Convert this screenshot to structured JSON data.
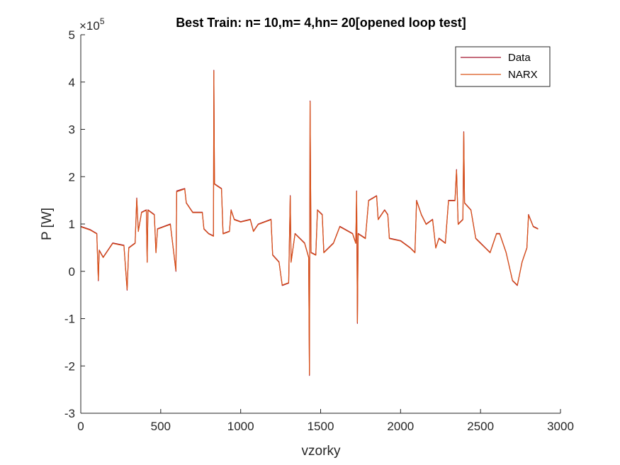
{
  "chart_data": {
    "type": "line",
    "title": "Best Train: n= 10,m= 4,hn= 20[opened loop test]",
    "xlabel": "vzorky",
    "ylabel": "P [W]",
    "y_exponent_prefix": "×10",
    "y_exponent_power": "5",
    "xlim": [
      0,
      3000
    ],
    "ylim": [
      -300000,
      500000
    ],
    "x_ticks": [
      0,
      500,
      1000,
      1500,
      2000,
      2500,
      3000
    ],
    "y_ticks": [
      -3,
      -2,
      -1,
      0,
      1,
      2,
      3,
      4,
      5
    ],
    "y_tick_scale": 100000,
    "legend_position": "top-right",
    "grid": false,
    "series": [
      {
        "name": "Data",
        "color": "#a2142f",
        "points": [
          [
            0,
            95000
          ],
          [
            60,
            88000
          ],
          [
            100,
            80000
          ],
          [
            110,
            -20000
          ],
          [
            115,
            45000
          ],
          [
            140,
            30000
          ],
          [
            200,
            60000
          ],
          [
            270,
            55000
          ],
          [
            290,
            -40000
          ],
          [
            300,
            50000
          ],
          [
            340,
            60000
          ],
          [
            350,
            155000
          ],
          [
            360,
            85000
          ],
          [
            380,
            125000
          ],
          [
            410,
            130000
          ],
          [
            415,
            20000
          ],
          [
            420,
            130000
          ],
          [
            460,
            120000
          ],
          [
            470,
            40000
          ],
          [
            480,
            90000
          ],
          [
            560,
            100000
          ],
          [
            595,
            0
          ],
          [
            600,
            170000
          ],
          [
            650,
            175000
          ],
          [
            660,
            145000
          ],
          [
            700,
            125000
          ],
          [
            760,
            125000
          ],
          [
            770,
            90000
          ],
          [
            800,
            80000
          ],
          [
            830,
            75000
          ],
          [
            832,
            425000
          ],
          [
            836,
            185000
          ],
          [
            880,
            175000
          ],
          [
            890,
            80000
          ],
          [
            930,
            85000
          ],
          [
            940,
            130000
          ],
          [
            960,
            110000
          ],
          [
            1000,
            105000
          ],
          [
            1060,
            110000
          ],
          [
            1080,
            85000
          ],
          [
            1110,
            100000
          ],
          [
            1190,
            110000
          ],
          [
            1200,
            35000
          ],
          [
            1240,
            20000
          ],
          [
            1260,
            -30000
          ],
          [
            1300,
            -25000
          ],
          [
            1310,
            160000
          ],
          [
            1315,
            20000
          ],
          [
            1340,
            80000
          ],
          [
            1400,
            60000
          ],
          [
            1425,
            30000
          ],
          [
            1430,
            -220000
          ],
          [
            1434,
            360000
          ],
          [
            1440,
            40000
          ],
          [
            1470,
            35000
          ],
          [
            1480,
            130000
          ],
          [
            1510,
            120000
          ],
          [
            1520,
            40000
          ],
          [
            1580,
            60000
          ],
          [
            1620,
            95000
          ],
          [
            1700,
            80000
          ],
          [
            1720,
            60000
          ],
          [
            1725,
            170000
          ],
          [
            1730,
            -110000
          ],
          [
            1735,
            80000
          ],
          [
            1780,
            70000
          ],
          [
            1800,
            150000
          ],
          [
            1850,
            160000
          ],
          [
            1860,
            110000
          ],
          [
            1900,
            130000
          ],
          [
            1920,
            120000
          ],
          [
            1930,
            70000
          ],
          [
            2000,
            65000
          ],
          [
            2060,
            50000
          ],
          [
            2090,
            40000
          ],
          [
            2100,
            150000
          ],
          [
            2130,
            120000
          ],
          [
            2160,
            100000
          ],
          [
            2200,
            110000
          ],
          [
            2220,
            50000
          ],
          [
            2240,
            70000
          ],
          [
            2280,
            60000
          ],
          [
            2300,
            150000
          ],
          [
            2340,
            150000
          ],
          [
            2350,
            215000
          ],
          [
            2360,
            100000
          ],
          [
            2390,
            110000
          ],
          [
            2395,
            295000
          ],
          [
            2400,
            145000
          ],
          [
            2440,
            130000
          ],
          [
            2470,
            70000
          ],
          [
            2500,
            60000
          ],
          [
            2530,
            50000
          ],
          [
            2560,
            40000
          ],
          [
            2600,
            80000
          ],
          [
            2620,
            80000
          ],
          [
            2660,
            40000
          ],
          [
            2700,
            -20000
          ],
          [
            2730,
            -30000
          ],
          [
            2760,
            20000
          ],
          [
            2790,
            50000
          ],
          [
            2800,
            120000
          ],
          [
            2830,
            95000
          ],
          [
            2860,
            90000
          ]
        ]
      },
      {
        "name": "NARX",
        "color": "#d95319",
        "points": [
          [
            0,
            94000
          ],
          [
            60,
            87000
          ],
          [
            100,
            79000
          ],
          [
            110,
            -18000
          ],
          [
            115,
            44000
          ],
          [
            140,
            29000
          ],
          [
            200,
            59000
          ],
          [
            270,
            54000
          ],
          [
            290,
            -38000
          ],
          [
            300,
            49000
          ],
          [
            340,
            59000
          ],
          [
            350,
            153000
          ],
          [
            360,
            84000
          ],
          [
            380,
            124000
          ],
          [
            410,
            129000
          ],
          [
            415,
            19000
          ],
          [
            420,
            129000
          ],
          [
            460,
            119000
          ],
          [
            470,
            39000
          ],
          [
            480,
            89000
          ],
          [
            560,
            99000
          ],
          [
            595,
            2000
          ],
          [
            600,
            168000
          ],
          [
            650,
            174000
          ],
          [
            660,
            144000
          ],
          [
            700,
            124000
          ],
          [
            760,
            124000
          ],
          [
            770,
            89000
          ],
          [
            800,
            79000
          ],
          [
            830,
            74000
          ],
          [
            832,
            423000
          ],
          [
            836,
            184000
          ],
          [
            880,
            174000
          ],
          [
            890,
            79000
          ],
          [
            930,
            84000
          ],
          [
            940,
            129000
          ],
          [
            960,
            109000
          ],
          [
            1000,
            104000
          ],
          [
            1060,
            109000
          ],
          [
            1080,
            84000
          ],
          [
            1110,
            99000
          ],
          [
            1190,
            109000
          ],
          [
            1200,
            34000
          ],
          [
            1240,
            19000
          ],
          [
            1260,
            -29000
          ],
          [
            1300,
            -24000
          ],
          [
            1310,
            158000
          ],
          [
            1315,
            19000
          ],
          [
            1340,
            79000
          ],
          [
            1400,
            59000
          ],
          [
            1425,
            29000
          ],
          [
            1430,
            -218000
          ],
          [
            1434,
            358000
          ],
          [
            1440,
            39000
          ],
          [
            1470,
            34000
          ],
          [
            1480,
            129000
          ],
          [
            1510,
            119000
          ],
          [
            1520,
            39000
          ],
          [
            1580,
            59000
          ],
          [
            1620,
            94000
          ],
          [
            1700,
            79000
          ],
          [
            1720,
            59000
          ],
          [
            1725,
            168000
          ],
          [
            1730,
            -108000
          ],
          [
            1735,
            79000
          ],
          [
            1780,
            69000
          ],
          [
            1800,
            149000
          ],
          [
            1850,
            159000
          ],
          [
            1860,
            109000
          ],
          [
            1900,
            129000
          ],
          [
            1920,
            119000
          ],
          [
            1930,
            69000
          ],
          [
            2000,
            64000
          ],
          [
            2060,
            49000
          ],
          [
            2090,
            39000
          ],
          [
            2100,
            149000
          ],
          [
            2130,
            119000
          ],
          [
            2160,
            99000
          ],
          [
            2200,
            109000
          ],
          [
            2220,
            49000
          ],
          [
            2240,
            69000
          ],
          [
            2280,
            59000
          ],
          [
            2300,
            149000
          ],
          [
            2340,
            149000
          ],
          [
            2350,
            213000
          ],
          [
            2360,
            99000
          ],
          [
            2390,
            109000
          ],
          [
            2395,
            293000
          ],
          [
            2400,
            144000
          ],
          [
            2440,
            129000
          ],
          [
            2470,
            69000
          ],
          [
            2500,
            59000
          ],
          [
            2530,
            49000
          ],
          [
            2560,
            39000
          ],
          [
            2600,
            79000
          ],
          [
            2620,
            79000
          ],
          [
            2660,
            39000
          ],
          [
            2700,
            -19000
          ],
          [
            2730,
            -29000
          ],
          [
            2760,
            19000
          ],
          [
            2790,
            49000
          ],
          [
            2800,
            119000
          ],
          [
            2830,
            94000
          ],
          [
            2860,
            89000
          ]
        ]
      }
    ]
  }
}
